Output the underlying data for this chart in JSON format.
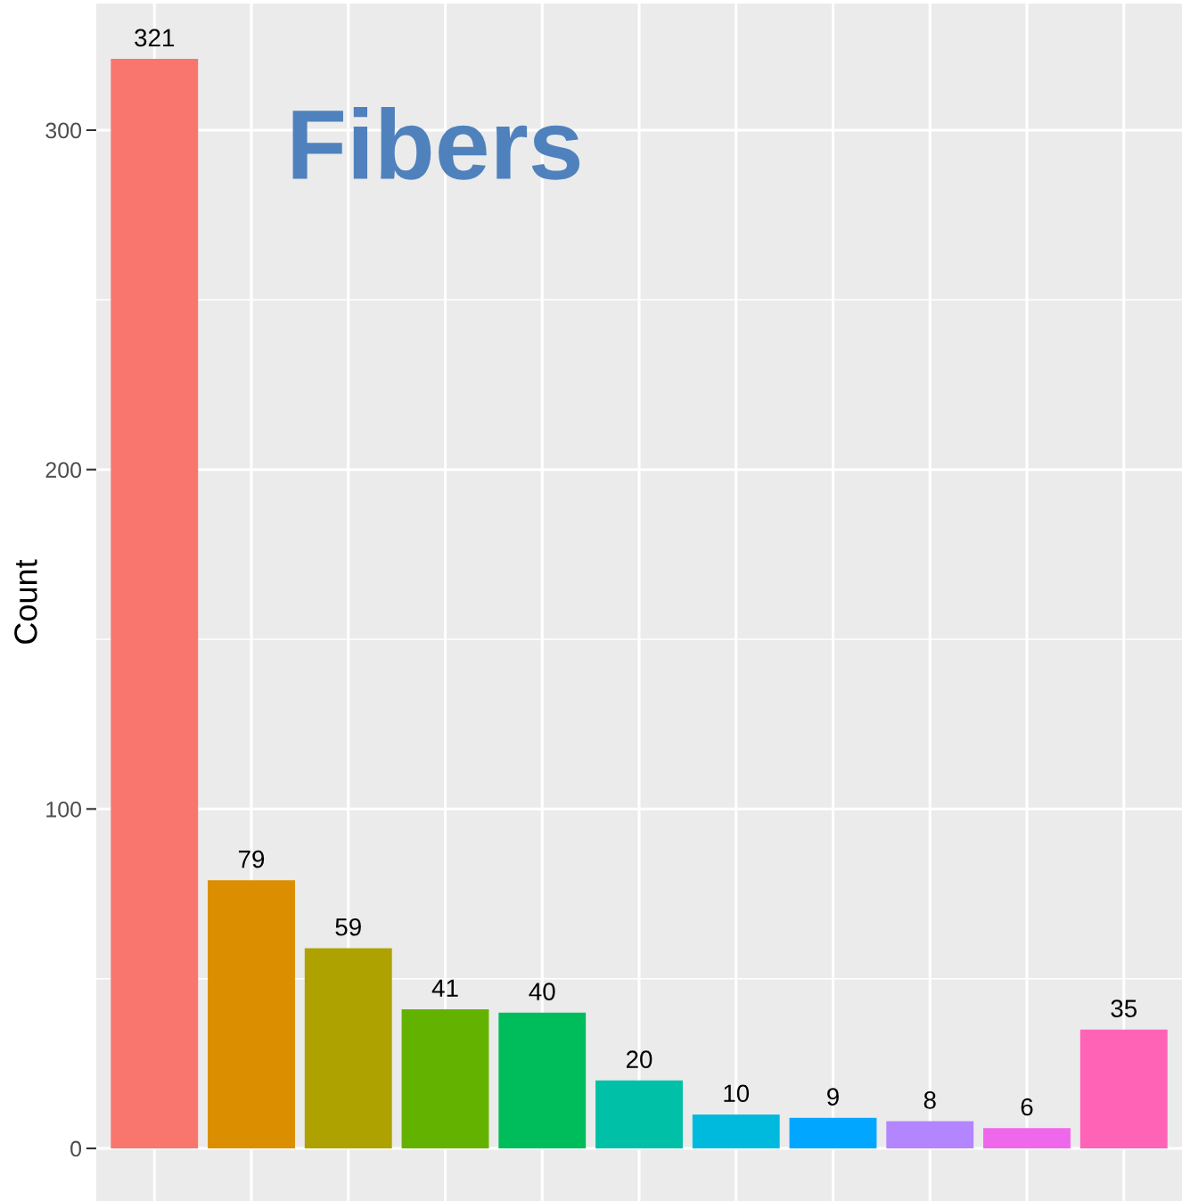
{
  "chart_data": {
    "type": "bar",
    "title": "Fibers",
    "ylabel": "Count",
    "categories": [
      null,
      null,
      null,
      null,
      null,
      null,
      null,
      null,
      null,
      null,
      null
    ],
    "values": [
      321,
      79,
      59,
      41,
      40,
      20,
      10,
      9,
      8,
      6,
      35
    ],
    "colors": [
      "#f8766d",
      "#db8e00",
      "#aea200",
      "#64b200",
      "#00bd5c",
      "#00c1a7",
      "#00bade",
      "#00a6ff",
      "#b385ff",
      "#ef67eb",
      "#ff63b6"
    ],
    "ylim": [
      -15.5,
      337.3
    ],
    "yticks": [
      0,
      {
        "value": 50,
        "label": null
      },
      100,
      {
        "value": 150,
        "label": null
      },
      200,
      {
        "value": 250,
        "label": null
      },
      300
    ],
    "grid": true,
    "data_labels": true,
    "tick_labels": "y"
  }
}
